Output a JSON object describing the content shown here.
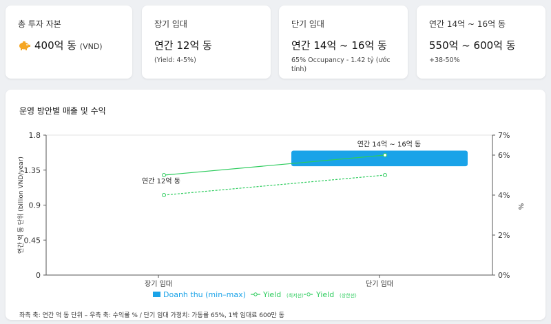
{
  "kpis": [
    {
      "label": "총 투자 자본",
      "value": "400억 동",
      "unit": "(VND)",
      "sub": ""
    },
    {
      "label": "장기 임대",
      "value": "연간 12억 동",
      "unit": "",
      "sub": "(Yield: 4-5%)"
    },
    {
      "label": "단기 임대",
      "value": "연간 14억 ~ 16억 동",
      "unit": "",
      "sub": "65% Occupancy - 1.42 tỷ (ước tính)"
    },
    {
      "label": "연간 14억 ~ 16억 동",
      "value": "550억 ~ 600억 동",
      "unit": "",
      "sub": "+38-50%"
    }
  ],
  "icons": {
    "investment": "piggy-bank-icon"
  },
  "colors": {
    "bar": "#1aa3e8",
    "line": "#2ecc5e",
    "accent": "#f5a623"
  },
  "chart": {
    "title": "운영 방안별 매출 및 수익",
    "note": "좌측 축: 연간 억 동 단위 – 우측 축: 수익률 % / 단기 임대 가정치: 가동률 65%, 1박 임대료 600만 동"
  },
  "chart_data": {
    "type": "bar",
    "categories": [
      "장기 임대",
      "단기 임대"
    ],
    "ylabel": "연간 억 동 단위 (billion VND/year)",
    "y2label": "%",
    "ylim": [
      0,
      1.8
    ],
    "y2lim": [
      0,
      7
    ],
    "yticks": [
      "0",
      "0.45",
      "0.9",
      "1.35",
      "1.8"
    ],
    "y2ticks": [
      "0%",
      "2%",
      "4%",
      "6%",
      "7%"
    ],
    "series": [
      {
        "name": "Doanh thu (min–max)",
        "type": "floating-bar",
        "values": [
          null,
          [
            1.4,
            1.6
          ]
        ]
      },
      {
        "name": "Yield",
        "type": "line",
        "axis": "right",
        "values": [
          5,
          6
        ]
      },
      {
        "name": "Yield",
        "type": "line",
        "axis": "right",
        "dashed": true,
        "values": [
          4,
          5
        ]
      }
    ],
    "legend": [
      {
        "label": "Doanh thu (min–max)",
        "sub": ""
      },
      {
        "label": "Yield",
        "sub": "(최저선)"
      },
      {
        "label": "Yield",
        "sub": "(상한선)"
      }
    ],
    "annotations": [
      {
        "category": "장기 임대",
        "text": "연간 12억 동"
      },
      {
        "category": "단기 임대",
        "text": "연간 14억 ~ 16억 동"
      }
    ],
    "grid": true,
    "legend_position": "bottom"
  }
}
